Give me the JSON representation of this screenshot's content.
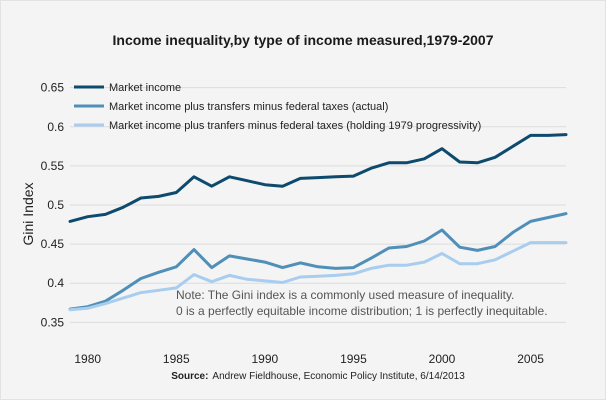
{
  "chart_data": {
    "type": "line",
    "title": "Income inequality,by type of income measured,1979-2007",
    "xlabel": "",
    "ylabel": "Gini Index",
    "xlim": [
      1979,
      2007
    ],
    "ylim": [
      0.33,
      0.67
    ],
    "x_ticks": [
      1980,
      1985,
      1990,
      1995,
      2000,
      2005
    ],
    "y_ticks": [
      0.35,
      0.4,
      0.45,
      0.5,
      0.55,
      0.6,
      0.65
    ],
    "grid": "horizontal",
    "legend_position": "top-left",
    "x": [
      1979,
      1980,
      1981,
      1982,
      1983,
      1984,
      1985,
      1986,
      1987,
      1988,
      1989,
      1990,
      1991,
      1992,
      1993,
      1994,
      1995,
      1996,
      1997,
      1998,
      1999,
      2000,
      2001,
      2002,
      2003,
      2004,
      2005,
      2006,
      2007
    ],
    "series": [
      {
        "name": "Market income",
        "color": "#0d4a6e",
        "values": [
          0.479,
          0.485,
          0.488,
          0.497,
          0.509,
          0.511,
          0.516,
          0.536,
          0.524,
          0.536,
          0.531,
          0.526,
          0.524,
          0.534,
          0.535,
          0.536,
          0.537,
          0.547,
          0.554,
          0.554,
          0.559,
          0.572,
          0.555,
          0.554,
          0.561,
          0.575,
          0.589,
          0.589,
          0.59
        ]
      },
      {
        "name": "Market income plus transfers minus federal taxes (actual)",
        "color": "#4f8fb8",
        "values": [
          0.367,
          0.37,
          0.377,
          0.391,
          0.406,
          0.414,
          0.421,
          0.443,
          0.42,
          0.435,
          0.431,
          0.427,
          0.42,
          0.426,
          0.421,
          0.419,
          0.42,
          0.432,
          0.445,
          0.447,
          0.454,
          0.468,
          0.446,
          0.442,
          0.447,
          0.465,
          0.479,
          0.484,
          0.489
        ]
      },
      {
        "name": "Market income plus tranfers minus federal taxes (holding 1979 progressivity)",
        "color": "#a8cdee",
        "values": [
          0.366,
          0.368,
          0.374,
          0.381,
          0.388,
          0.391,
          0.394,
          0.411,
          0.402,
          0.41,
          0.405,
          0.403,
          0.401,
          0.408,
          0.409,
          0.41,
          0.412,
          0.419,
          0.423,
          0.423,
          0.427,
          0.438,
          0.425,
          0.425,
          0.43,
          0.441,
          0.452,
          0.452,
          0.452
        ]
      }
    ],
    "annotations": [
      "Note: The Gini index is a commonly used measure of inequality.",
      "0 is a perfectly equitable income distribution; 1 is perfectly inequitable."
    ]
  },
  "source": {
    "label": "Source:",
    "text": "Andrew Fieldhouse, Economic Policy Institute, 6/14/2013"
  }
}
